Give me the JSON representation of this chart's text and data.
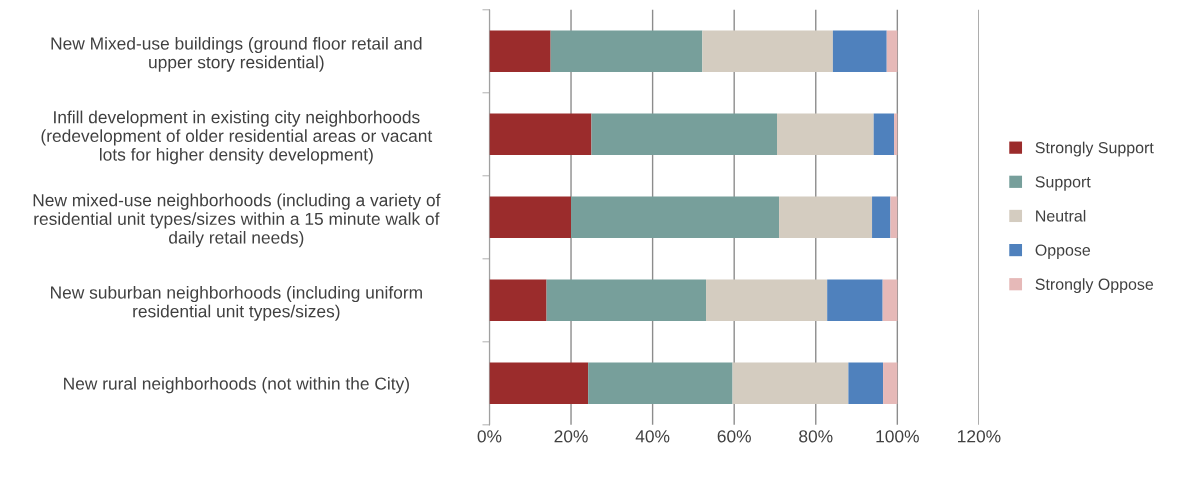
{
  "chart_data": {
    "type": "bar",
    "orientation": "horizontal",
    "stacked": true,
    "categories": [
      "New Mixed-use buildings (ground floor retail and\nupper story residential)",
      "Infill development in existing city neighborhoods\n(redevelopment of older residential areas or vacant\nlots for higher density development)",
      "New mixed-use neighborhoods (including a variety of\nresidential unit types/sizes within a 15 minute walk of\ndaily retail needs)",
      "New suburban neighborhoods (including uniform\nresidential unit types/sizes)",
      "New rural neighborhoods (not within the City)"
    ],
    "series": [
      {
        "name": "Strongly Support",
        "color": "#9b2c2c",
        "values": [
          15.0,
          25.0,
          20.0,
          14.0,
          24.2
        ]
      },
      {
        "name": "Support",
        "color": "#779f9b",
        "values": [
          37.2,
          45.5,
          51.0,
          39.1,
          35.4
        ]
      },
      {
        "name": "Neutral",
        "color": "#d4ccc0",
        "values": [
          32.0,
          23.7,
          22.8,
          29.7,
          28.4
        ]
      },
      {
        "name": "Oppose",
        "color": "#4f81bd",
        "values": [
          13.2,
          5.0,
          4.5,
          13.6,
          8.5
        ]
      },
      {
        "name": "Strongly Oppose",
        "color": "#e6b9b8",
        "values": [
          2.6,
          0.8,
          1.7,
          3.6,
          3.5
        ]
      }
    ],
    "xlim": [
      0,
      120
    ],
    "xticks": [
      {
        "value": 0,
        "label": "0%"
      },
      {
        "value": 20,
        "label": "20%"
      },
      {
        "value": 40,
        "label": "40%"
      },
      {
        "value": 60,
        "label": "60%"
      },
      {
        "value": 80,
        "label": "80%"
      },
      {
        "value": 100,
        "label": "100%"
      },
      {
        "value": 120,
        "label": "120%"
      }
    ],
    "grid": "x",
    "legend": "right"
  }
}
